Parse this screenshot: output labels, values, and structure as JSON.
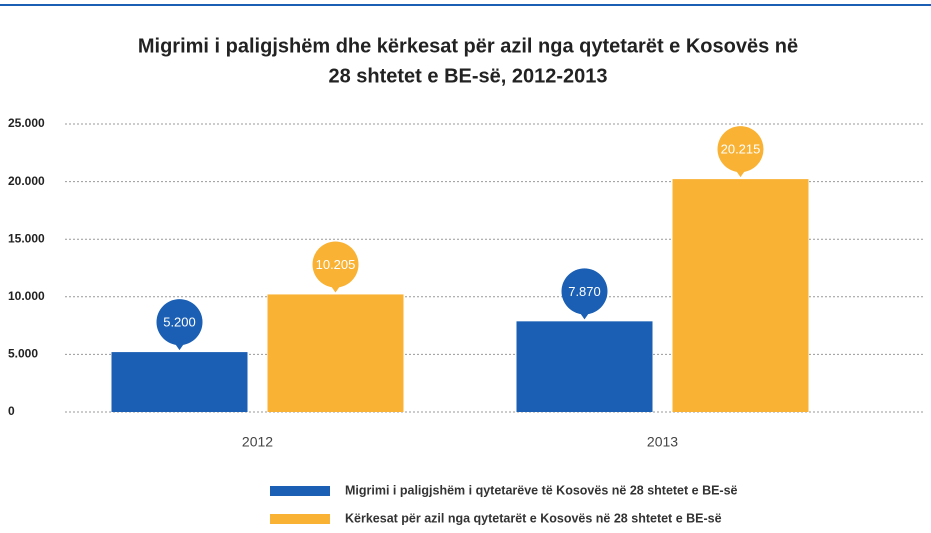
{
  "chart_data": {
    "type": "bar",
    "title": [
      "Migrimi i paligjshëm dhe kërkesat për azil nga qytetarët e Kosovës në",
      "28 shtetet e BE-së, 2012-2013"
    ],
    "categories": [
      "2012",
      "2013"
    ],
    "series": [
      {
        "name": "Migrimi i paligjshëm i qytetarëve të Kosovës në 28 shtetet e BE-së",
        "color": "#1a5fb4",
        "values": [
          5200,
          7870
        ],
        "value_labels": [
          "5.200",
          "7.870"
        ]
      },
      {
        "name": "Kërkesat për azil nga qytetarët e Kosovës në 28 shtetet e BE-së",
        "color": "#f9b233",
        "values": [
          10205,
          20215
        ],
        "value_labels": [
          "10.205",
          "20.215"
        ]
      }
    ],
    "ylim": [
      0,
      25000
    ],
    "yticks": [
      0,
      {
        "value": 5000,
        "label": "5.000"
      },
      {
        "value": 10000,
        "label": "10.000"
      },
      {
        "value": 15000,
        "label": "15.000"
      },
      {
        "value": 20000,
        "label": "20.000"
      },
      {
        "value": 25000,
        "label": "25.000"
      }
    ],
    "grid": true
  }
}
